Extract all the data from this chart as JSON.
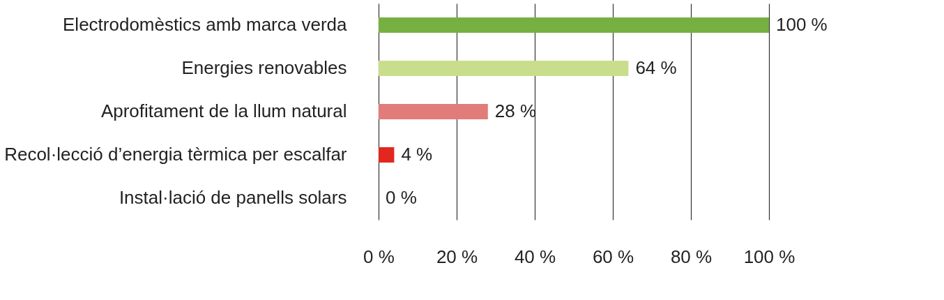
{
  "chart_data": {
    "type": "bar",
    "orientation": "horizontal",
    "categories": [
      "Electrodomèstics amb marca verda",
      "Energies renovables ",
      "Aprofitament de la llum natural",
      "Recol·lecció d’energia tèrmica per escalfar",
      "Instal·lació de panells solars"
    ],
    "values": [
      100,
      64,
      28,
      4,
      0
    ],
    "colors": [
      "#76b041",
      "#c9de8d",
      "#e27c7a",
      "#e2271f",
      "#e2271f"
    ],
    "value_labels": [
      "100 %",
      "64 %",
      "28 %",
      "4 %",
      "0 %"
    ],
    "xlim": [
      0,
      100
    ],
    "xticks": [
      {
        "value": 0,
        "label": "0 %"
      },
      {
        "value": 20,
        "label": "20 %"
      },
      {
        "value": 40,
        "label": "40 %"
      },
      {
        "value": 60,
        "label": "60 %"
      },
      {
        "value": 80,
        "label": "80 %"
      },
      {
        "value": 100,
        "label": "100 %"
      }
    ],
    "grid": "x"
  }
}
